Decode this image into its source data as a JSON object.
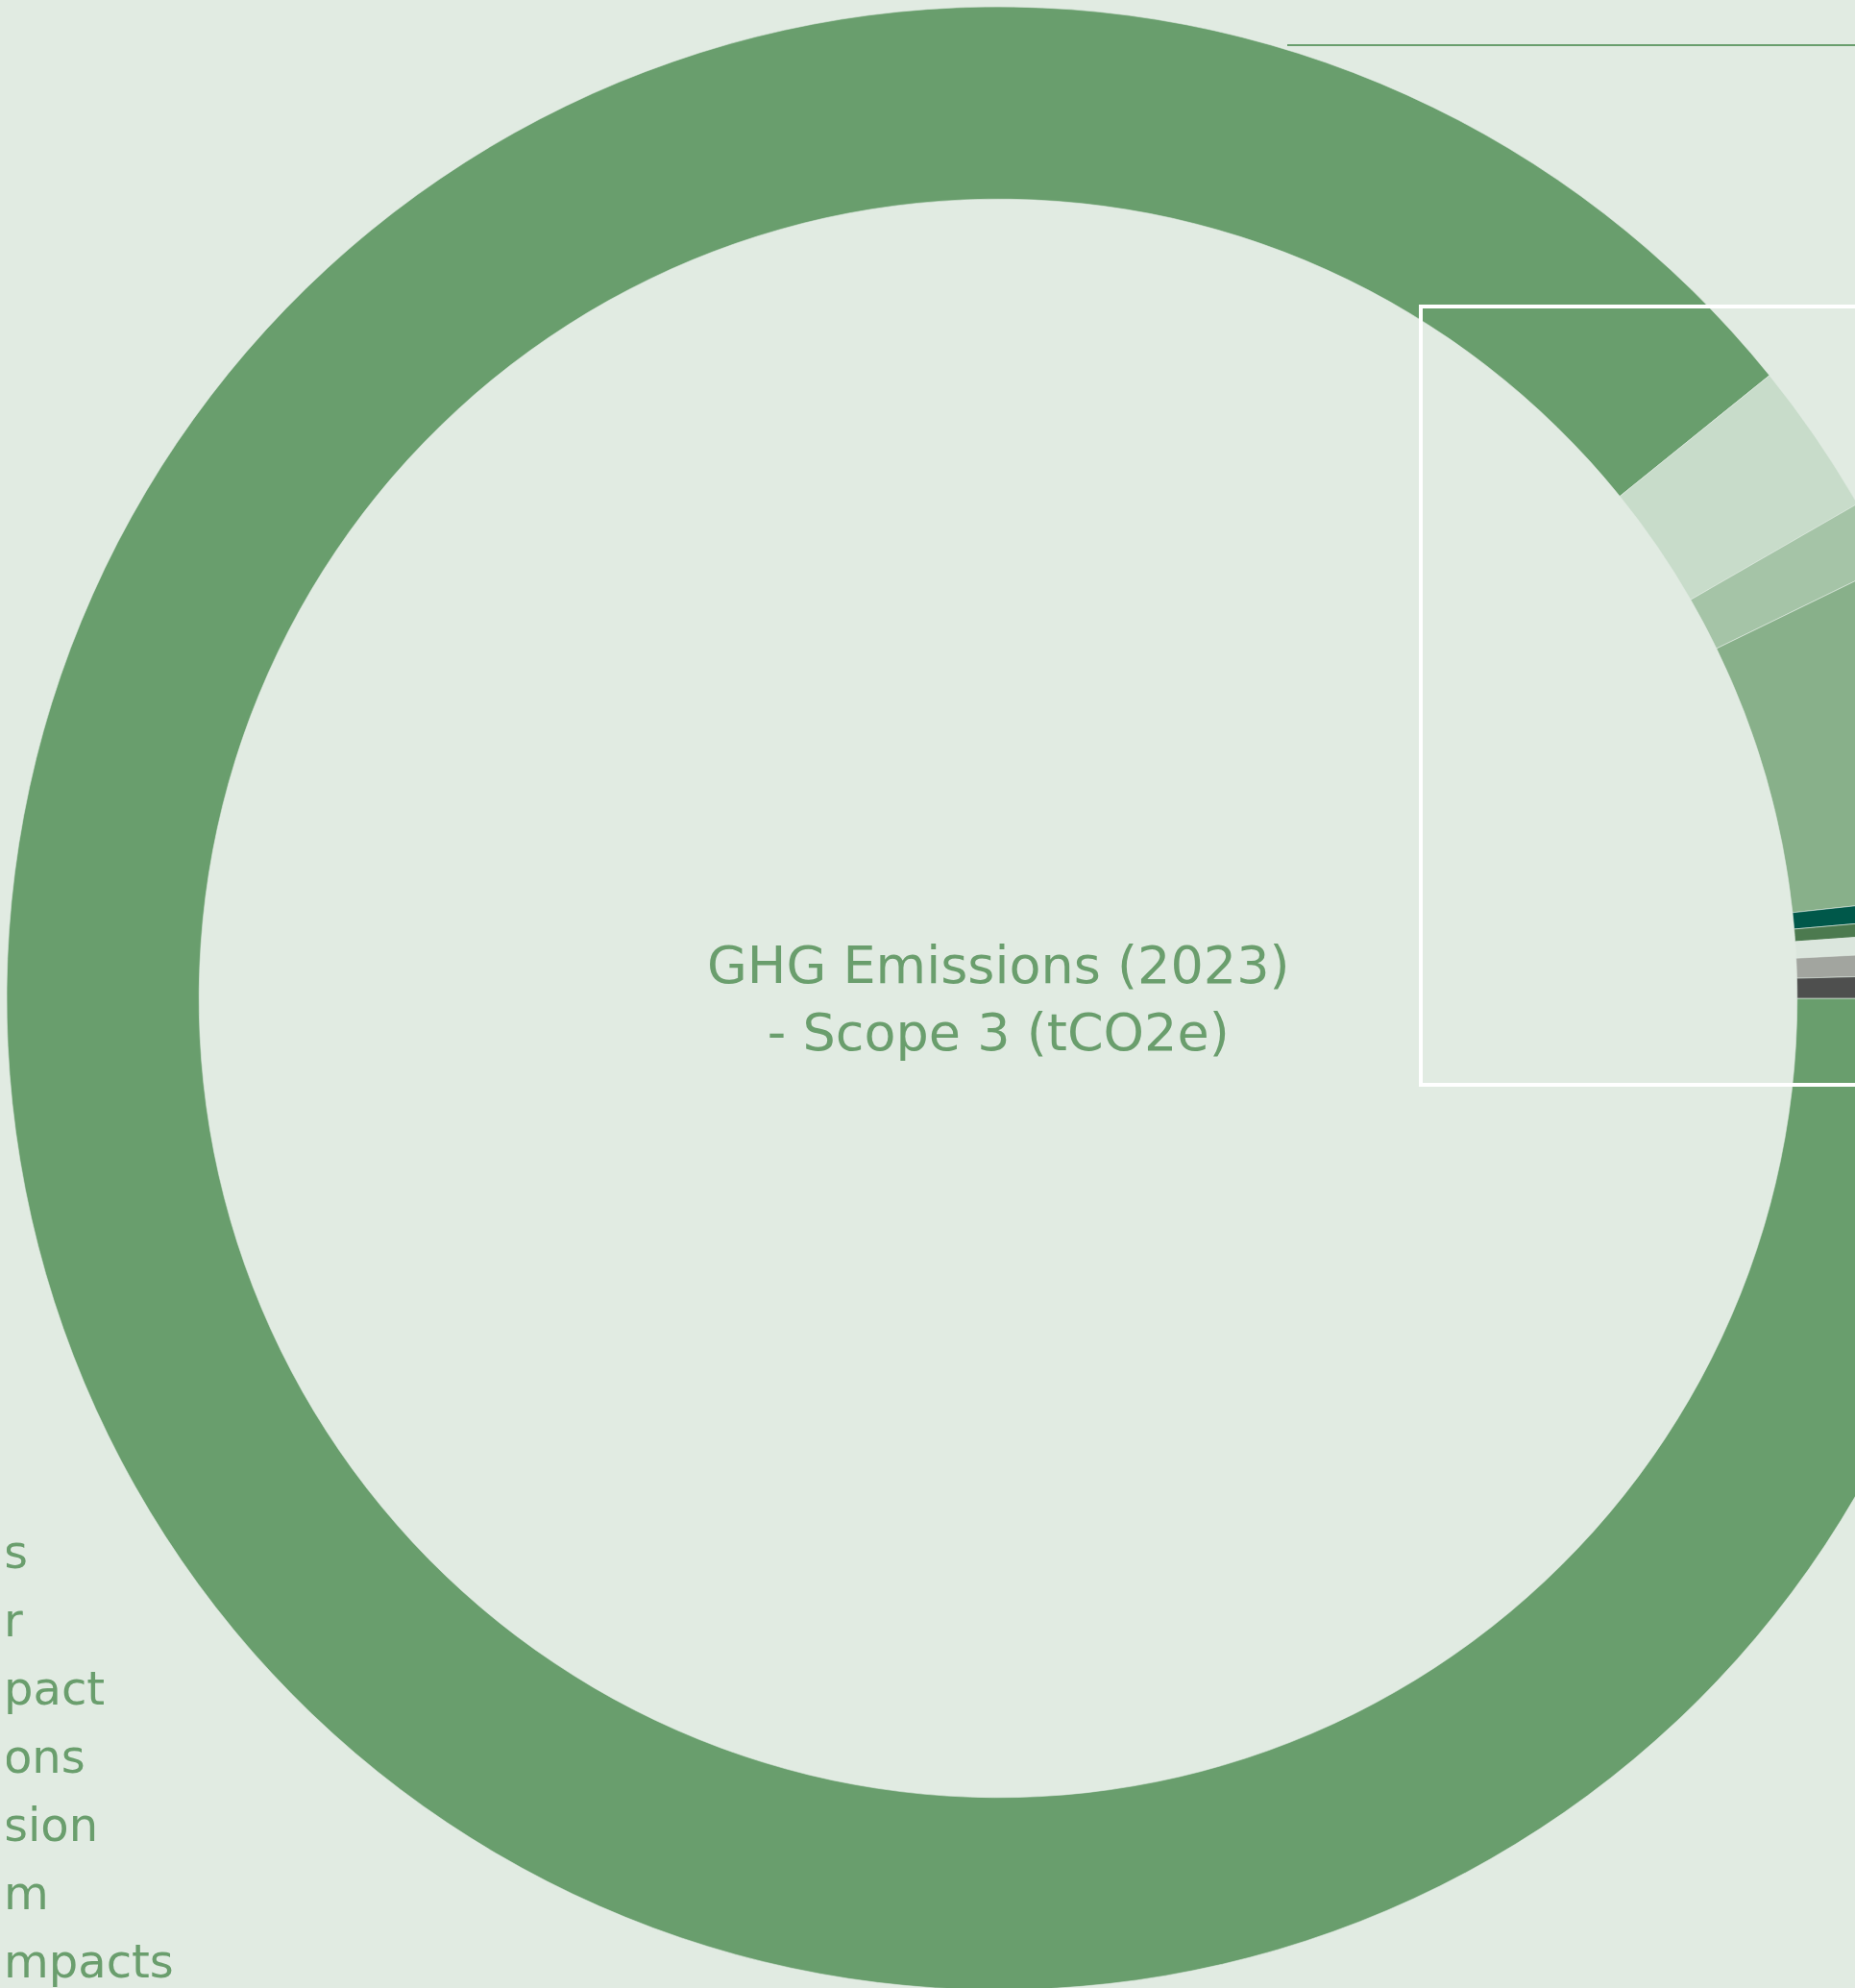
{
  "chart_data": {
    "type": "donut",
    "title": "GHG Emissions (2023)\n- Scope 3 (tCO2e)",
    "categories": [
      null,
      null,
      null,
      null,
      null,
      null,
      null,
      null,
      null
    ],
    "values": [
      89.19,
      2.5,
      1.1,
      5.5,
      0.33,
      0.25,
      0.33,
      0.4,
      0.4
    ],
    "colors": [
      "#699e6d",
      "#c8dcca",
      "#a5c4a7",
      "#88b08a",
      "#00584a",
      "#4c7a4f",
      "#dbe6dd",
      "#a2a59f",
      "#4e4f4e"
    ],
    "legend": false,
    "annotations": [
      "s",
      "r",
      "pact",
      "ons",
      "sion",
      "m",
      "mpacts"
    ]
  }
}
